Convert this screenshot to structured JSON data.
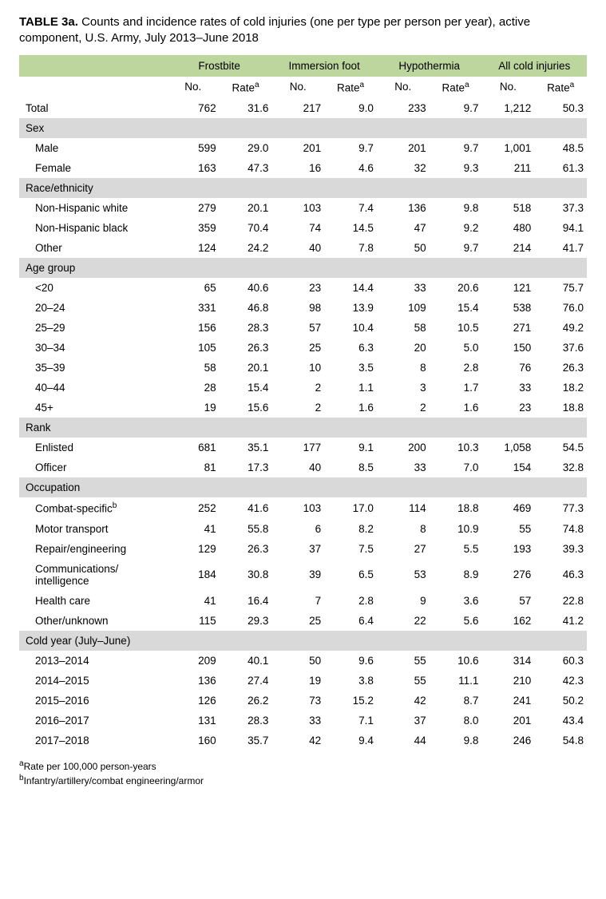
{
  "title_label": "TABLE 3a.",
  "title_text": " Counts and incidence rates of cold injuries (one per type per person per year), active component, U.S. Army, July 2013–June 2018",
  "col_groups": [
    "Frostbite",
    "Immersion foot",
    "Hypothermia",
    "All cold injuries"
  ],
  "subhdr_no": "No.",
  "subhdr_rate": "Rate",
  "rate_sup": "a",
  "total_label": "Total",
  "total": [
    "762",
    "31.6",
    "217",
    "9.0",
    "233",
    "9.7",
    "1,212",
    "50.3"
  ],
  "sections": [
    {
      "header": "Sex",
      "rows": [
        {
          "label": "Male",
          "vals": [
            "599",
            "29.0",
            "201",
            "9.7",
            "201",
            "9.7",
            "1,001",
            "48.5"
          ]
        },
        {
          "label": "Female",
          "vals": [
            "163",
            "47.3",
            "16",
            "4.6",
            "32",
            "9.3",
            "211",
            "61.3"
          ]
        }
      ]
    },
    {
      "header": "Race/ethnicity",
      "rows": [
        {
          "label": "Non-Hispanic white",
          "vals": [
            "279",
            "20.1",
            "103",
            "7.4",
            "136",
            "9.8",
            "518",
            "37.3"
          ]
        },
        {
          "label": "Non-Hispanic black",
          "vals": [
            "359",
            "70.4",
            "74",
            "14.5",
            "47",
            "9.2",
            "480",
            "94.1"
          ]
        },
        {
          "label": "Other",
          "vals": [
            "124",
            "24.2",
            "40",
            "7.8",
            "50",
            "9.7",
            "214",
            "41.7"
          ]
        }
      ]
    },
    {
      "header": "Age group",
      "rows": [
        {
          "label": "<20",
          "vals": [
            "65",
            "40.6",
            "23",
            "14.4",
            "33",
            "20.6",
            "121",
            "75.7"
          ]
        },
        {
          "label": "20–24",
          "vals": [
            "331",
            "46.8",
            "98",
            "13.9",
            "109",
            "15.4",
            "538",
            "76.0"
          ]
        },
        {
          "label": "25–29",
          "vals": [
            "156",
            "28.3",
            "57",
            "10.4",
            "58",
            "10.5",
            "271",
            "49.2"
          ]
        },
        {
          "label": "30–34",
          "vals": [
            "105",
            "26.3",
            "25",
            "6.3",
            "20",
            "5.0",
            "150",
            "37.6"
          ]
        },
        {
          "label": "35–39",
          "vals": [
            "58",
            "20.1",
            "10",
            "3.5",
            "8",
            "2.8",
            "76",
            "26.3"
          ]
        },
        {
          "label": "40–44",
          "vals": [
            "28",
            "15.4",
            "2",
            "1.1",
            "3",
            "1.7",
            "33",
            "18.2"
          ]
        },
        {
          "label": "45+",
          "vals": [
            "19",
            "15.6",
            "2",
            "1.6",
            "2",
            "1.6",
            "23",
            "18.8"
          ]
        }
      ]
    },
    {
      "header": "Rank",
      "rows": [
        {
          "label": "Enlisted",
          "vals": [
            "681",
            "35.1",
            "177",
            "9.1",
            "200",
            "10.3",
            "1,058",
            "54.5"
          ]
        },
        {
          "label": "Officer",
          "vals": [
            "81",
            "17.3",
            "40",
            "8.5",
            "33",
            "7.0",
            "154",
            "32.8"
          ]
        }
      ]
    },
    {
      "header": "Occupation",
      "rows": [
        {
          "label": "Combat-specific",
          "sup": "b",
          "vals": [
            "252",
            "41.6",
            "103",
            "17.0",
            "114",
            "18.8",
            "469",
            "77.3"
          ]
        },
        {
          "label": "Motor transport",
          "vals": [
            "41",
            "55.8",
            "6",
            "8.2",
            "8",
            "10.9",
            "55",
            "74.8"
          ]
        },
        {
          "label": "Repair/engineering",
          "vals": [
            "129",
            "26.3",
            "37",
            "7.5",
            "27",
            "5.5",
            "193",
            "39.3"
          ]
        },
        {
          "label": "Communications/ intelligence",
          "vals": [
            "184",
            "30.8",
            "39",
            "6.5",
            "53",
            "8.9",
            "276",
            "46.3"
          ]
        },
        {
          "label": "Health care",
          "vals": [
            "41",
            "16.4",
            "7",
            "2.8",
            "9",
            "3.6",
            "57",
            "22.8"
          ]
        },
        {
          "label": "Other/unknown",
          "vals": [
            "115",
            "29.3",
            "25",
            "6.4",
            "22",
            "5.6",
            "162",
            "41.2"
          ]
        }
      ]
    },
    {
      "header": "Cold year (July–June)",
      "rows": [
        {
          "label": "2013–2014",
          "vals": [
            "209",
            "40.1",
            "50",
            "9.6",
            "55",
            "10.6",
            "314",
            "60.3"
          ]
        },
        {
          "label": "2014–2015",
          "vals": [
            "136",
            "27.4",
            "19",
            "3.8",
            "55",
            "11.1",
            "210",
            "42.3"
          ]
        },
        {
          "label": "2015–2016",
          "vals": [
            "126",
            "26.2",
            "73",
            "15.2",
            "42",
            "8.7",
            "241",
            "50.2"
          ]
        },
        {
          "label": "2016–2017",
          "vals": [
            "131",
            "28.3",
            "33",
            "7.1",
            "37",
            "8.0",
            "201",
            "43.4"
          ]
        },
        {
          "label": "2017–2018",
          "vals": [
            "160",
            "35.7",
            "42",
            "9.4",
            "44",
            "9.8",
            "246",
            "54.8"
          ]
        }
      ]
    }
  ],
  "footnote_a": "Rate per 100,000 person-years",
  "footnote_b": "Infantry/artillery/combat engineering/armor"
}
